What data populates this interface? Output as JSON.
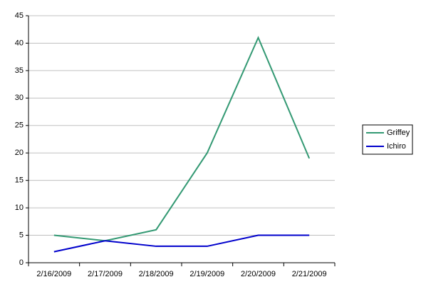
{
  "chart_data": {
    "type": "line",
    "categories": [
      "2/16/2009",
      "2/17/2009",
      "2/18/2009",
      "2/19/2009",
      "2/20/2009",
      "2/21/2009"
    ],
    "series": [
      {
        "name": "Griffey",
        "color": "#339973",
        "values": [
          5,
          4,
          6,
          20,
          41,
          19
        ]
      },
      {
        "name": "Ichiro",
        "color": "#0000cc",
        "values": [
          2,
          4,
          3,
          3,
          5,
          5
        ]
      }
    ],
    "ylim": [
      0,
      45
    ],
    "yticks": [
      0,
      5,
      10,
      15,
      20,
      25,
      30,
      35,
      40,
      45
    ],
    "grid": true,
    "legend": "right"
  }
}
